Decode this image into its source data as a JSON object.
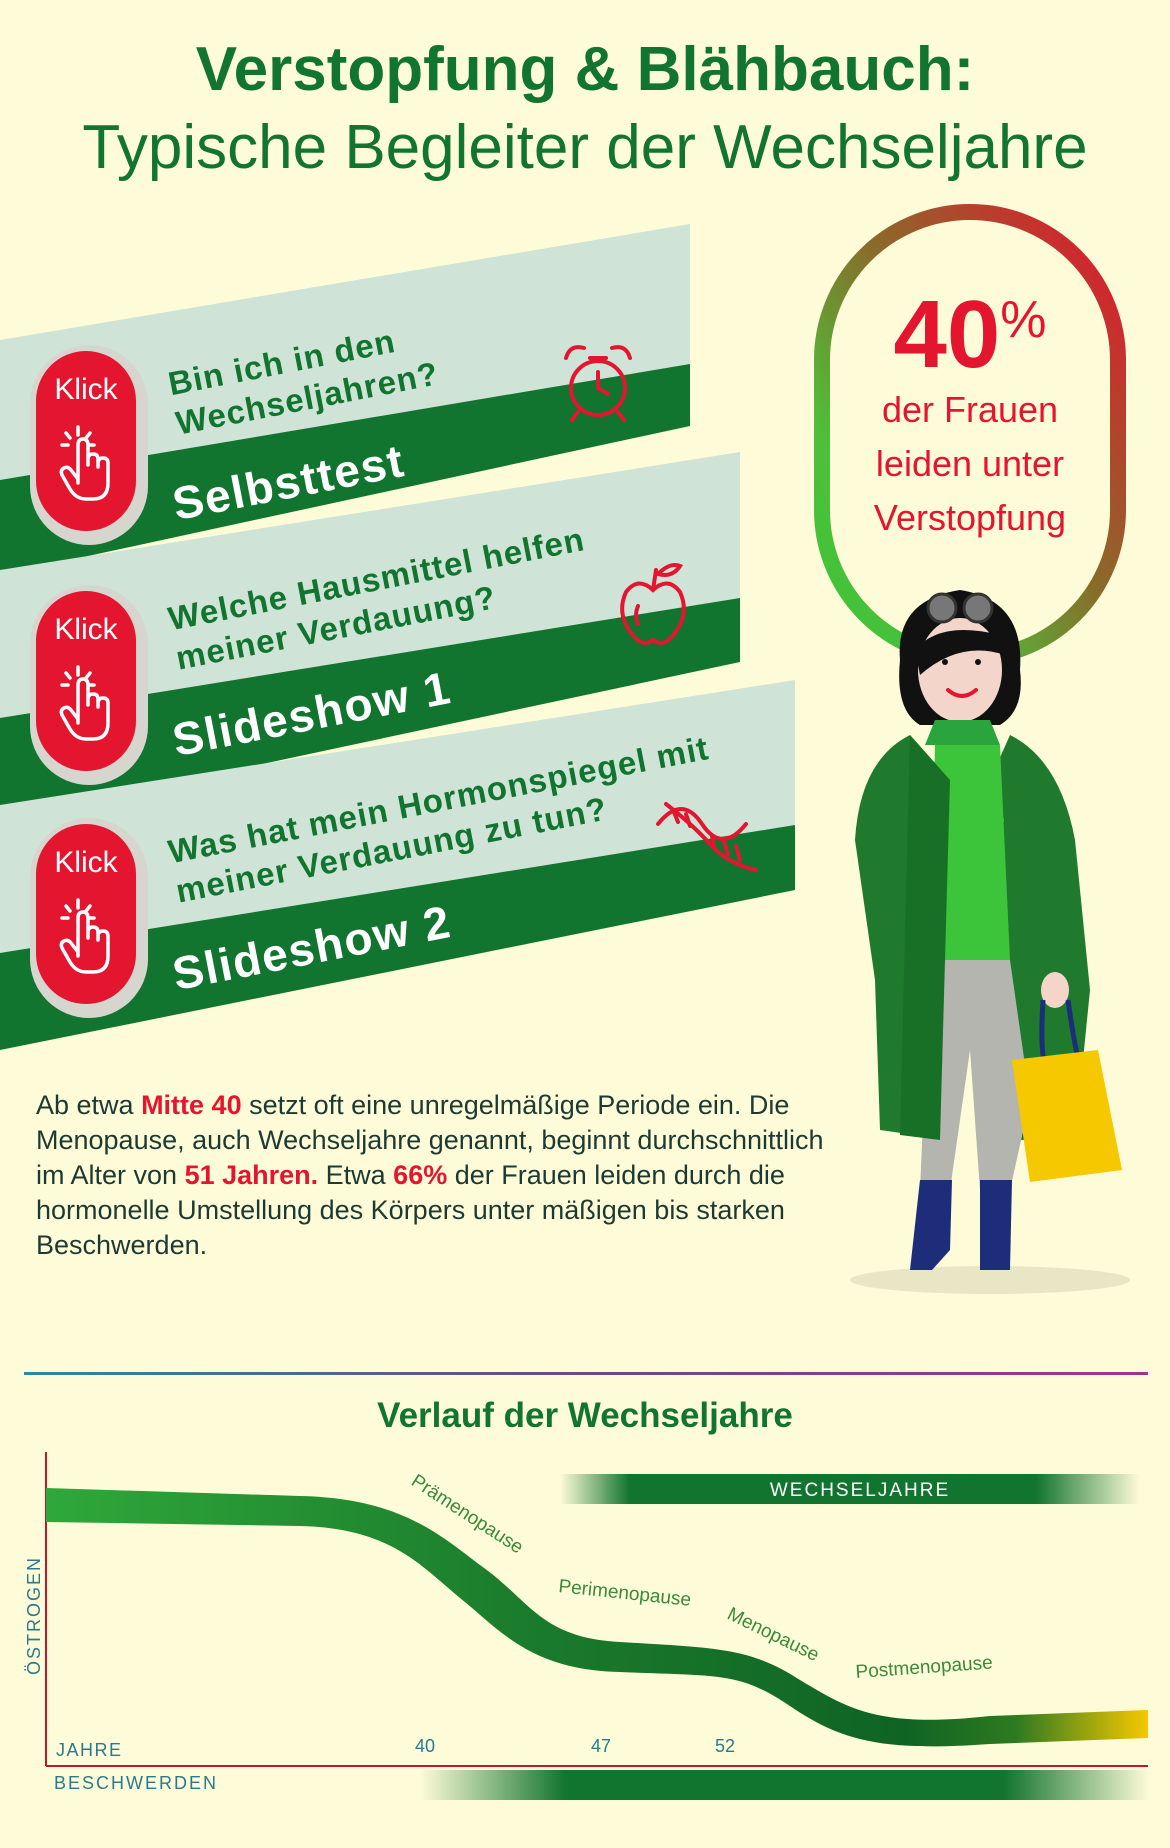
{
  "header": {
    "title_line1": "Verstopfung & Blähbauch:",
    "title_line2": "Typische Begleiter der Wechseljahre"
  },
  "banners": [
    {
      "question_line1": "Bin ich in den",
      "question_line2": "Wechseljahren?",
      "label": "Selbsttest",
      "button": "Klick",
      "icon": "alarm-clock-icon"
    },
    {
      "question_line1": "Welche Hausmittel helfen",
      "question_line2": "meiner Verdauung?",
      "label": "Slideshow 1",
      "button": "Klick",
      "icon": "apple-icon"
    },
    {
      "question_line1": "Was hat mein Hormonspiegel mit",
      "question_line2": "meiner Verdauung zu tun?",
      "label": "Slideshow 2",
      "button": "Klick",
      "icon": "dna-icon"
    }
  ],
  "stat": {
    "value": "40",
    "unit": "%",
    "line1": "der Frauen",
    "line2": "leiden unter",
    "line3": "Verstopfung"
  },
  "paragraph": {
    "p1": "Ab etwa ",
    "h1": "Mitte 40",
    "p2": " setzt oft eine unregelmäßige Periode ein. Die Menopause, auch Wechseljahre genannt, beginnt durchschnittlich im Alter von ",
    "h2": "51 Jahren.",
    "p3": " Etwa ",
    "h3": "66%",
    "p4": " der Frauen leiden durch die hormonelle Umstellung des Körpers unter mäßigen bis starken Beschwerden."
  },
  "chart_data": {
    "type": "area",
    "title": "Verlauf der Wechseljahre",
    "ylabel": "ÖSTROGEN",
    "xlabel": "JAHRE",
    "x_ticks": [
      "40",
      "47",
      "52"
    ],
    "phases": [
      "Prämenopause",
      "Perimenopause",
      "Menopause",
      "Postmenopause"
    ],
    "range_label": "WECHSELJAHRE",
    "bottom_label": "BESCHWERDEN"
  },
  "colors": {
    "brand_green": "#11742f",
    "accent_red": "#e3152f",
    "background": "#fefcd8"
  }
}
